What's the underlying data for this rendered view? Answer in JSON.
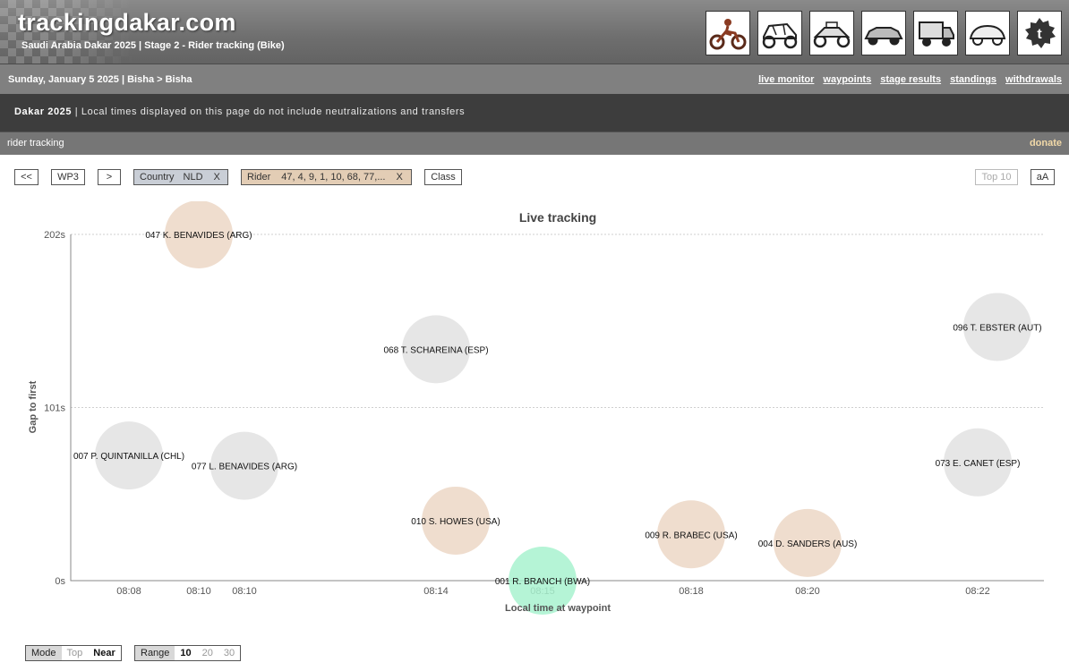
{
  "header": {
    "logo": "trackingdakar.com",
    "subtitle": "Saudi Arabia Dakar 2025 | Stage 2 - Rider tracking (Bike)",
    "vehicles": [
      "bike-icon",
      "ssv-icon",
      "buggy-icon",
      "car-icon",
      "truck-icon",
      "classic-car-icon",
      "twitter-icon"
    ]
  },
  "datebar": {
    "date": "Sunday, January 5 2025 | Bisha > Bisha",
    "links": [
      "live monitor",
      "waypoints",
      "stage results",
      "standings",
      "withdrawals"
    ]
  },
  "notice": {
    "brand": "Dakar 2025",
    "text": " | Local times displayed on this page do not include neutralizations and transfers"
  },
  "trackbar": {
    "label": "rider tracking",
    "donate": "donate"
  },
  "controls": {
    "prev": "<<",
    "waypoint": "WP3",
    "next": ">",
    "country_label": "Country",
    "country_value": "NLD",
    "country_clear": "X",
    "rider_label": "Rider",
    "rider_value": "47, 4, 9, 1, 10, 68, 77,...",
    "rider_clear": "X",
    "class_label": "Class",
    "top10": "Top 10",
    "font_toggle": "aA"
  },
  "chart_data": {
    "type": "scatter",
    "title": "Live tracking",
    "xlabel": "Local time at waypoint",
    "ylabel": "Gap to first",
    "y_ticks": [
      {
        "value": 0,
        "label": "0s"
      },
      {
        "value": 101,
        "label": "101s"
      },
      {
        "value": 202,
        "label": "202s"
      }
    ],
    "ylim": [
      0,
      202
    ],
    "x_ticks": [
      "08:08",
      "08:10",
      "08:10",
      "08:14",
      "08:15",
      "08:18",
      "08:20",
      "08:22"
    ],
    "grid": true,
    "points": [
      {
        "label": "047 K. BENAVIDES (ARG)",
        "time": "08:10",
        "gap": 202,
        "color": "#ecd7c6"
      },
      {
        "label": "068 T. SCHAREINA (ESP)",
        "time": "08:14",
        "gap": 135,
        "color": "#e2e2e2"
      },
      {
        "label": "096 T. EBSTER (AUT)",
        "time": "08:22",
        "gap": 148,
        "color": "#e2e2e2"
      },
      {
        "label": "007 P. QUINTANILLA (CHL)",
        "time": "08:08",
        "gap": 73,
        "color": "#e2e2e2"
      },
      {
        "label": "077 L. BENAVIDES (ARG)",
        "time": "08:10",
        "gap": 67,
        "color": "#e2e2e2"
      },
      {
        "label": "073 E. CANET (ESP)",
        "time": "08:22",
        "gap": 69,
        "color": "#e2e2e2"
      },
      {
        "label": "010 S. HOWES (USA)",
        "time": "08:14",
        "gap": 35,
        "color": "#ecd7c6"
      },
      {
        "label": "009 R. BRABEC (USA)",
        "time": "08:18",
        "gap": 27,
        "color": "#ecd7c6"
      },
      {
        "label": "004 D. SANDERS (AUS)",
        "time": "08:20",
        "gap": 22,
        "color": "#ecd7c6"
      },
      {
        "label": "001 R. BRANCH (BWA)",
        "time": "08:15",
        "gap": 0,
        "color": "#a8f2cf"
      }
    ]
  },
  "bottom": {
    "mode_label": "Mode",
    "mode_options": [
      "Top",
      "Near"
    ],
    "mode_selected": "Near",
    "range_label": "Range",
    "range_options": [
      "10",
      "20",
      "30"
    ],
    "range_selected": "10"
  }
}
